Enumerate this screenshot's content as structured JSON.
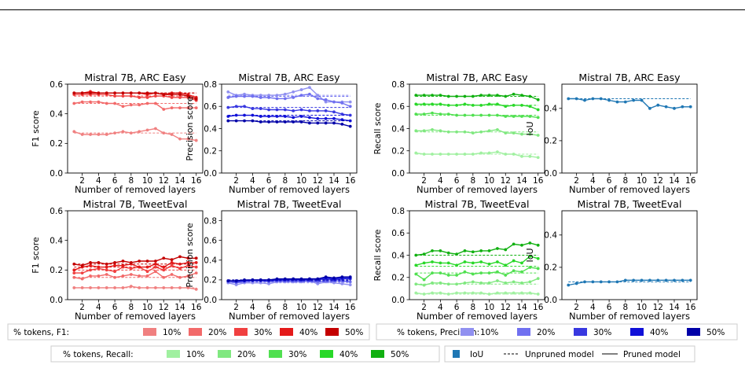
{
  "figure": {
    "xlabel": "Number of removed layers",
    "x_ticks": [
      2,
      4,
      6,
      8,
      10,
      12,
      14,
      16
    ]
  },
  "chart_data": [
    {
      "type": "line",
      "title": "Mistral 7B, ARC Easy",
      "xlabel": "Number of removed layers",
      "ylabel": "F1 score",
      "ylim": [
        0,
        0.6
      ],
      "yticks": [
        0.0,
        0.2,
        0.4,
        0.6
      ],
      "x": [
        1,
        2,
        3,
        4,
        5,
        6,
        7,
        8,
        9,
        10,
        11,
        12,
        13,
        14,
        15,
        16
      ],
      "series": [
        {
          "name": "10%",
          "color": "#f08080",
          "baseline": 0.27,
          "values": [
            0.28,
            0.26,
            0.26,
            0.26,
            0.26,
            0.27,
            0.28,
            0.27,
            0.28,
            0.29,
            0.3,
            0.27,
            0.26,
            0.23,
            0.23,
            0.22
          ]
        },
        {
          "name": "20%",
          "color": "#f26a6a",
          "baseline": 0.47,
          "values": [
            0.47,
            0.48,
            0.48,
            0.48,
            0.47,
            0.47,
            0.45,
            0.46,
            0.46,
            0.47,
            0.47,
            0.43,
            0.44,
            0.44,
            0.44,
            0.44
          ]
        },
        {
          "name": "30%",
          "color": "#f04040",
          "baseline": 0.52,
          "values": [
            0.53,
            0.53,
            0.53,
            0.53,
            0.53,
            0.52,
            0.52,
            0.52,
            0.51,
            0.51,
            0.52,
            0.52,
            0.51,
            0.51,
            0.51,
            0.49
          ]
        },
        {
          "name": "40%",
          "color": "#e41a1a",
          "baseline": 0.54,
          "values": [
            0.54,
            0.54,
            0.55,
            0.54,
            0.54,
            0.54,
            0.54,
            0.54,
            0.54,
            0.53,
            0.54,
            0.53,
            0.54,
            0.54,
            0.53,
            0.51
          ]
        },
        {
          "name": "50%",
          "color": "#c40000",
          "baseline": 0.54,
          "values": [
            0.54,
            0.54,
            0.54,
            0.54,
            0.54,
            0.54,
            0.54,
            0.54,
            0.54,
            0.54,
            0.54,
            0.53,
            0.53,
            0.53,
            0.52,
            0.5
          ]
        }
      ]
    },
    {
      "type": "line",
      "title": "Mistral 7B, ARC Easy",
      "xlabel": "Number of removed layers",
      "ylabel": "Precision score",
      "ylim": [
        0,
        0.8
      ],
      "yticks": [
        0.0,
        0.2,
        0.4,
        0.6,
        0.8
      ],
      "x": [
        1,
        2,
        3,
        4,
        5,
        6,
        7,
        8,
        9,
        10,
        11,
        12,
        13,
        14,
        15,
        16
      ],
      "series": [
        {
          "name": "10%",
          "color": "#9090f0",
          "baseline": 0.7,
          "values": [
            0.73,
            0.7,
            0.71,
            0.7,
            0.7,
            0.7,
            0.7,
            0.71,
            0.73,
            0.75,
            0.77,
            0.7,
            0.64,
            0.64,
            0.64,
            0.64
          ]
        },
        {
          "name": "20%",
          "color": "#7070f0",
          "baseline": 0.69,
          "values": [
            0.68,
            0.69,
            0.69,
            0.69,
            0.68,
            0.68,
            0.67,
            0.67,
            0.68,
            0.7,
            0.71,
            0.67,
            0.66,
            0.64,
            0.63,
            0.6
          ]
        },
        {
          "name": "30%",
          "color": "#3838e0",
          "baseline": 0.59,
          "values": [
            0.59,
            0.6,
            0.6,
            0.58,
            0.58,
            0.57,
            0.57,
            0.57,
            0.56,
            0.57,
            0.56,
            0.56,
            0.56,
            0.55,
            0.53,
            0.52
          ]
        },
        {
          "name": "40%",
          "color": "#1010d8",
          "baseline": 0.52,
          "values": [
            0.51,
            0.52,
            0.52,
            0.52,
            0.51,
            0.51,
            0.51,
            0.51,
            0.5,
            0.51,
            0.5,
            0.49,
            0.49,
            0.49,
            0.48,
            0.47
          ]
        },
        {
          "name": "50%",
          "color": "#0000a8",
          "baseline": 0.47,
          "values": [
            0.47,
            0.47,
            0.47,
            0.47,
            0.46,
            0.46,
            0.46,
            0.46,
            0.46,
            0.46,
            0.45,
            0.45,
            0.45,
            0.45,
            0.44,
            0.42
          ]
        }
      ]
    },
    {
      "type": "line",
      "title": "Mistral 7B, ARC Easy",
      "xlabel": "Number of removed layers",
      "ylabel": "Recall score",
      "ylim": [
        0,
        0.8
      ],
      "yticks": [
        0.0,
        0.2,
        0.4,
        0.6,
        0.8
      ],
      "x": [
        1,
        2,
        3,
        4,
        5,
        6,
        7,
        8,
        9,
        10,
        11,
        12,
        13,
        14,
        15,
        16
      ],
      "series": [
        {
          "name": "10%",
          "color": "#a0f0a0",
          "baseline": 0.17,
          "values": [
            0.18,
            0.17,
            0.17,
            0.17,
            0.17,
            0.17,
            0.17,
            0.17,
            0.18,
            0.18,
            0.19,
            0.17,
            0.17,
            0.15,
            0.15,
            0.14
          ]
        },
        {
          "name": "20%",
          "color": "#80e880",
          "baseline": 0.37,
          "values": [
            0.38,
            0.38,
            0.39,
            0.38,
            0.37,
            0.37,
            0.37,
            0.36,
            0.37,
            0.38,
            0.39,
            0.36,
            0.36,
            0.35,
            0.35,
            0.34
          ]
        },
        {
          "name": "30%",
          "color": "#50e050",
          "baseline": 0.52,
          "values": [
            0.53,
            0.53,
            0.54,
            0.53,
            0.53,
            0.52,
            0.52,
            0.52,
            0.52,
            0.52,
            0.52,
            0.51,
            0.51,
            0.51,
            0.51,
            0.5
          ]
        },
        {
          "name": "40%",
          "color": "#28d828",
          "baseline": 0.61,
          "values": [
            0.62,
            0.62,
            0.62,
            0.62,
            0.61,
            0.61,
            0.62,
            0.61,
            0.61,
            0.62,
            0.62,
            0.6,
            0.61,
            0.61,
            0.6,
            0.57
          ]
        },
        {
          "name": "50%",
          "color": "#10b010",
          "baseline": 0.69,
          "values": [
            0.7,
            0.7,
            0.7,
            0.7,
            0.69,
            0.69,
            0.69,
            0.69,
            0.7,
            0.7,
            0.7,
            0.69,
            0.71,
            0.7,
            0.69,
            0.66
          ]
        }
      ]
    },
    {
      "type": "line",
      "title": "Mistral 7B, ARC Easy",
      "xlabel": "Number of removed layers",
      "ylabel": "IoU",
      "ylim": [
        0,
        0.55
      ],
      "yticks": [
        0.0,
        0.2,
        0.4
      ],
      "x": [
        1,
        2,
        3,
        4,
        5,
        6,
        7,
        8,
        9,
        10,
        11,
        12,
        13,
        14,
        15,
        16
      ],
      "series": [
        {
          "name": "IoU",
          "color": "#1f77b4",
          "baseline": 0.46,
          "values": [
            0.46,
            0.46,
            0.45,
            0.46,
            0.46,
            0.45,
            0.44,
            0.44,
            0.45,
            0.45,
            0.4,
            0.42,
            0.41,
            0.4,
            0.41,
            0.41
          ]
        }
      ]
    },
    {
      "type": "line",
      "title": "Mistral 7B, TweetEval",
      "xlabel": "Number of removed layers",
      "ylabel": "F1 score",
      "ylim": [
        0,
        0.6
      ],
      "yticks": [
        0.0,
        0.2,
        0.4,
        0.6
      ],
      "x": [
        1,
        2,
        3,
        4,
        5,
        6,
        7,
        8,
        9,
        10,
        11,
        12,
        13,
        14,
        15,
        16
      ],
      "series": [
        {
          "name": "10%",
          "color": "#f08080",
          "baseline": 0.08,
          "values": [
            0.08,
            0.08,
            0.08,
            0.08,
            0.08,
            0.08,
            0.08,
            0.09,
            0.08,
            0.08,
            0.08,
            0.08,
            0.08,
            0.08,
            0.08,
            0.07
          ]
        },
        {
          "name": "20%",
          "color": "#f26a6a",
          "baseline": 0.15,
          "values": [
            0.15,
            0.14,
            0.16,
            0.16,
            0.17,
            0.15,
            0.16,
            0.17,
            0.16,
            0.16,
            0.19,
            0.15,
            0.17,
            0.15,
            0.16,
            0.18
          ]
        },
        {
          "name": "30%",
          "color": "#f04040",
          "baseline": 0.2,
          "values": [
            0.18,
            0.18,
            0.2,
            0.21,
            0.2,
            0.19,
            0.22,
            0.21,
            0.22,
            0.19,
            0.22,
            0.2,
            0.23,
            0.21,
            0.23,
            0.22
          ]
        },
        {
          "name": "40%",
          "color": "#e41a1a",
          "baseline": 0.22,
          "values": [
            0.2,
            0.22,
            0.23,
            0.22,
            0.22,
            0.23,
            0.23,
            0.24,
            0.22,
            0.22,
            0.24,
            0.22,
            0.25,
            0.24,
            0.25,
            0.25
          ]
        },
        {
          "name": "50%",
          "color": "#c40000",
          "baseline": 0.24,
          "values": [
            0.24,
            0.23,
            0.25,
            0.25,
            0.24,
            0.25,
            0.26,
            0.25,
            0.26,
            0.26,
            0.26,
            0.28,
            0.27,
            0.29,
            0.28,
            0.28
          ]
        }
      ]
    },
    {
      "type": "line",
      "title": "Mistral 7B, TweetEval",
      "xlabel": "Number of removed layers",
      "ylabel": "Precision score",
      "ylim": [
        0,
        0.9
      ],
      "yticks": [
        0.0,
        0.2,
        0.4,
        0.6,
        0.8
      ],
      "x": [
        1,
        2,
        3,
        4,
        5,
        6,
        7,
        8,
        9,
        10,
        11,
        12,
        13,
        14,
        15,
        16
      ],
      "series": [
        {
          "name": "10%",
          "color": "#9090f0",
          "baseline": 0.17,
          "values": [
            0.17,
            0.15,
            0.17,
            0.17,
            0.17,
            0.16,
            0.18,
            0.18,
            0.18,
            0.18,
            0.19,
            0.16,
            0.18,
            0.17,
            0.16,
            0.15
          ]
        },
        {
          "name": "20%",
          "color": "#7070f0",
          "baseline": 0.18,
          "values": [
            0.18,
            0.17,
            0.18,
            0.19,
            0.19,
            0.18,
            0.19,
            0.19,
            0.19,
            0.19,
            0.19,
            0.18,
            0.19,
            0.19,
            0.19,
            0.18
          ]
        },
        {
          "name": "30%",
          "color": "#3838e0",
          "baseline": 0.19,
          "values": [
            0.19,
            0.18,
            0.19,
            0.19,
            0.19,
            0.19,
            0.2,
            0.2,
            0.2,
            0.2,
            0.2,
            0.2,
            0.21,
            0.2,
            0.21,
            0.21
          ]
        },
        {
          "name": "40%",
          "color": "#1010d8",
          "baseline": 0.19,
          "values": [
            0.19,
            0.19,
            0.19,
            0.2,
            0.2,
            0.2,
            0.2,
            0.2,
            0.21,
            0.2,
            0.21,
            0.21,
            0.22,
            0.21,
            0.22,
            0.22
          ]
        },
        {
          "name": "50%",
          "color": "#0000a8",
          "baseline": 0.2,
          "values": [
            0.19,
            0.19,
            0.2,
            0.2,
            0.2,
            0.2,
            0.21,
            0.21,
            0.21,
            0.21,
            0.21,
            0.21,
            0.23,
            0.22,
            0.23,
            0.23
          ]
        }
      ]
    },
    {
      "type": "line",
      "title": "Mistral 7B, TweetEval",
      "xlabel": "Number of removed layers",
      "ylabel": "Recall score",
      "ylim": [
        0,
        0.8
      ],
      "yticks": [
        0.0,
        0.2,
        0.4,
        0.6,
        0.8
      ],
      "x": [
        1,
        2,
        3,
        4,
        5,
        6,
        7,
        8,
        9,
        10,
        11,
        12,
        13,
        14,
        15,
        16
      ],
      "series": [
        {
          "name": "10%",
          "color": "#a0f0a0",
          "baseline": 0.05,
          "values": [
            0.06,
            0.05,
            0.06,
            0.06,
            0.05,
            0.06,
            0.06,
            0.06,
            0.06,
            0.05,
            0.06,
            0.06,
            0.06,
            0.06,
            0.06,
            0.05
          ]
        },
        {
          "name": "20%",
          "color": "#80e880",
          "baseline": 0.14,
          "values": [
            0.14,
            0.13,
            0.15,
            0.15,
            0.14,
            0.14,
            0.15,
            0.16,
            0.15,
            0.15,
            0.17,
            0.15,
            0.16,
            0.15,
            0.16,
            0.19
          ]
        },
        {
          "name": "30%",
          "color": "#50e050",
          "baseline": 0.24,
          "values": [
            0.23,
            0.18,
            0.24,
            0.24,
            0.22,
            0.22,
            0.25,
            0.23,
            0.24,
            0.24,
            0.25,
            0.22,
            0.26,
            0.25,
            0.29,
            0.28
          ]
        },
        {
          "name": "40%",
          "color": "#28d828",
          "baseline": 0.3,
          "values": [
            0.31,
            0.33,
            0.34,
            0.33,
            0.33,
            0.31,
            0.34,
            0.33,
            0.34,
            0.32,
            0.34,
            0.31,
            0.35,
            0.33,
            0.39,
            0.37
          ]
        },
        {
          "name": "50%",
          "color": "#10b010",
          "baseline": 0.4,
          "values": [
            0.4,
            0.41,
            0.44,
            0.44,
            0.42,
            0.41,
            0.44,
            0.43,
            0.44,
            0.44,
            0.46,
            0.45,
            0.5,
            0.49,
            0.51,
            0.49
          ]
        }
      ]
    },
    {
      "type": "line",
      "title": "Mistral 7B, TweetEval",
      "xlabel": "Number of removed layers",
      "ylabel": "IoU",
      "ylim": [
        0,
        0.55
      ],
      "yticks": [
        0.0,
        0.2,
        0.4
      ],
      "x": [
        1,
        2,
        3,
        4,
        5,
        6,
        7,
        8,
        9,
        10,
        11,
        12,
        13,
        14,
        15,
        16
      ],
      "series": [
        {
          "name": "IoU",
          "color": "#1f77b4",
          "baseline": 0.11,
          "values": [
            0.09,
            0.1,
            0.11,
            0.11,
            0.11,
            0.11,
            0.11,
            0.12,
            0.12,
            0.12,
            0.12,
            0.12,
            0.12,
            0.12,
            0.12,
            0.12
          ]
        }
      ]
    }
  ],
  "legends": [
    {
      "title": "% tokens, F1:",
      "kind": "patch",
      "entries": [
        {
          "label": "10%",
          "color": "#f08080"
        },
        {
          "label": "20%",
          "color": "#f26a6a"
        },
        {
          "label": "30%",
          "color": "#f04040"
        },
        {
          "label": "40%",
          "color": "#e41a1a"
        },
        {
          "label": "50%",
          "color": "#c40000"
        }
      ]
    },
    {
      "title": "% tokens, Precision:",
      "kind": "patch",
      "entries": [
        {
          "label": "10%",
          "color": "#9090f0"
        },
        {
          "label": "20%",
          "color": "#7070f0"
        },
        {
          "label": "30%",
          "color": "#3838e0"
        },
        {
          "label": "40%",
          "color": "#1010d8"
        },
        {
          "label": "50%",
          "color": "#0000a8"
        }
      ]
    },
    {
      "title": "% tokens, Recall:",
      "kind": "patch",
      "entries": [
        {
          "label": "10%",
          "color": "#a0f0a0"
        },
        {
          "label": "20%",
          "color": "#80e880"
        },
        {
          "label": "30%",
          "color": "#50e050"
        },
        {
          "label": "40%",
          "color": "#28d828"
        },
        {
          "label": "50%",
          "color": "#10b010"
        }
      ]
    },
    {
      "title": "",
      "kind": "mixed",
      "entries": [
        {
          "label": "IoU",
          "color": "#1f77b4",
          "style": "patch"
        },
        {
          "label": "Unpruned model",
          "color": "#000000",
          "style": "dashed"
        },
        {
          "label": "Pruned model",
          "color": "#000000",
          "style": "solid"
        }
      ]
    }
  ]
}
